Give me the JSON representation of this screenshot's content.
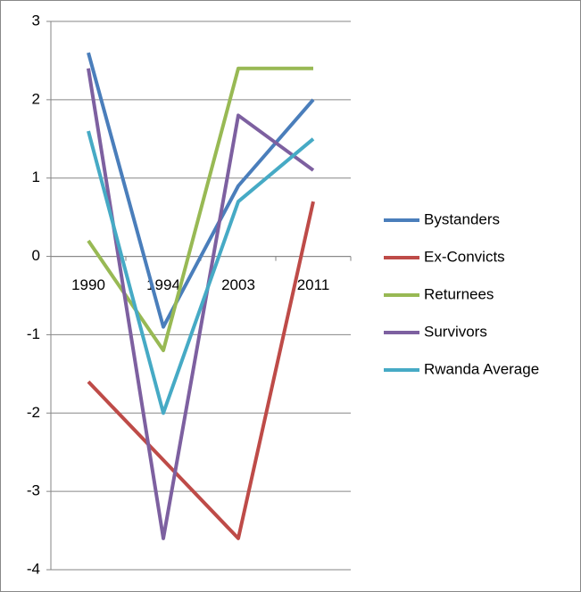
{
  "chart_data": {
    "type": "line",
    "categories": [
      "1990",
      "1994",
      "2003",
      "2011"
    ],
    "series": [
      {
        "name": "Bystanders",
        "color": "#4a7ebb",
        "values": [
          2.6,
          -0.9,
          0.9,
          2.0
        ]
      },
      {
        "name": "Ex-Convicts",
        "color": "#be4b48",
        "values": [
          -1.6,
          -2.6,
          -3.6,
          0.7
        ]
      },
      {
        "name": "Returnees",
        "color": "#98b954",
        "values": [
          0.2,
          -1.2,
          2.4,
          2.4
        ]
      },
      {
        "name": "Survivors",
        "color": "#7d60a0",
        "values": [
          2.4,
          -3.6,
          1.8,
          1.1
        ]
      },
      {
        "name": "Rwanda Average",
        "color": "#46aac5",
        "values": [
          1.6,
          -2.0,
          0.7,
          1.5
        ]
      }
    ],
    "ylim": [
      -4,
      3
    ],
    "yticks": [
      -4,
      -3,
      -2,
      -1,
      0,
      1,
      2,
      3
    ],
    "grid": true,
    "legend": "right"
  }
}
